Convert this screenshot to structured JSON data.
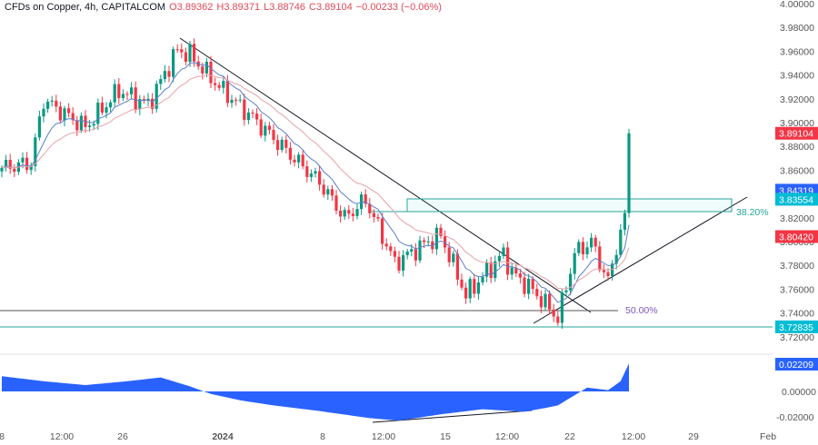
{
  "header": {
    "symbol": "CFDs on Copper, 4h, CAPITALCOM",
    "open": "O3.89362",
    "high": "H3.89371",
    "low": "L3.88746",
    "close": "C3.89104",
    "change": "−0.00233 (−0.06%)"
  },
  "chart_data": {
    "type": "candlestick",
    "title": "CFDs on Copper, 4h, CAPITALCOM",
    "ylim": [
      3.71,
      4.0
    ],
    "y_ticks": [
      "4.00000",
      "3.98000",
      "3.96000",
      "3.94000",
      "3.92000",
      "3.90000",
      "3.88000",
      "3.86000",
      "3.84000",
      "3.82000",
      "3.80000",
      "3.78000",
      "3.76000",
      "3.74000",
      "3.72000"
    ],
    "x_ticks": [
      "8",
      "12:00",
      "26",
      "2024",
      "8",
      "12:00",
      "15",
      "12:00",
      "22",
      "12:00",
      "29",
      "Feb"
    ],
    "close_path": {
      "candle_index": [
        0,
        7,
        10,
        20,
        28,
        35,
        42,
        45,
        52,
        60,
        69,
        76,
        82,
        87,
        94,
        102,
        105,
        111,
        120,
        122,
        127,
        132,
        133,
        137,
        141,
        145,
        148,
        149,
        150
      ],
      "price": [
        3.862,
        3.866,
        3.919,
        3.896,
        3.927,
        3.915,
        3.961,
        3.957,
        3.93,
        3.904,
        3.873,
        3.85,
        3.82,
        3.835,
        3.782,
        3.8,
        3.805,
        3.755,
        3.79,
        3.774,
        3.759,
        3.74,
        3.735,
        3.79,
        3.8,
        3.766,
        3.81,
        3.824,
        3.891
      ]
    },
    "price_labels": [
      {
        "value": "3.89104",
        "color": "#f23645"
      },
      {
        "value": "3.84319",
        "color": "#2962ff"
      },
      {
        "value": "3.83554",
        "color": "#00bcd4"
      },
      {
        "value": "3.80420",
        "color": "#f23645"
      },
      {
        "value": "3.72835",
        "color": "#00bcd4"
      }
    ],
    "fib_levels": [
      {
        "label": "38.20%",
        "price": 3.8235
      },
      {
        "label": "50.00%",
        "price": 3.7425
      }
    ],
    "horizontal_line": 3.72835,
    "oscillator": {
      "ylim": [
        -0.027,
        0.027
      ],
      "y_ticks": [
        "0.00000",
        "-0.02000"
      ],
      "current": "0.02209",
      "candle_index": [
        0,
        10,
        20,
        30,
        38,
        45,
        50,
        57,
        65,
        75,
        88,
        95,
        105,
        115,
        125,
        130,
        133,
        140,
        145,
        148,
        150
      ],
      "value": [
        0.012,
        0.008,
        0.005,
        0.008,
        0.011,
        0.004,
        -0.002,
        -0.007,
        -0.011,
        -0.015,
        -0.021,
        -0.023,
        -0.018,
        -0.014,
        -0.016,
        -0.013,
        -0.011,
        0.003,
        0.001,
        0.008,
        0.022
      ]
    },
    "colors": {
      "up": "#089981",
      "down": "#f23645",
      "ema_fast": "#5b7fc7",
      "ema_slow": "#e7a0a8",
      "osc": "#2962ff"
    }
  }
}
